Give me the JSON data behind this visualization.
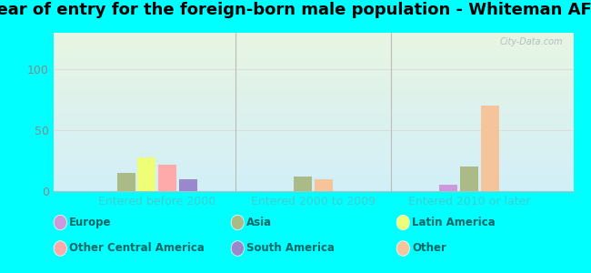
{
  "title": "Year of entry for the foreign-born male population - Whiteman AFB",
  "groups": [
    "Entered before 2000",
    "Entered 2000 to 2009",
    "Entered 2010 or later"
  ],
  "bars": [
    {
      "group": 0,
      "series": "Asia",
      "value": 15,
      "color": "#aabb88"
    },
    {
      "group": 0,
      "series": "Latin America",
      "value": 28,
      "color": "#eeff77"
    },
    {
      "group": 0,
      "series": "Other Central America",
      "value": 22,
      "color": "#ffaaaa"
    },
    {
      "group": 0,
      "series": "South America",
      "value": 10,
      "color": "#9988cc"
    },
    {
      "group": 1,
      "series": "Asia",
      "value": 12,
      "color": "#aabb88"
    },
    {
      "group": 1,
      "series": "Other",
      "value": 10,
      "color": "#f5c49a"
    },
    {
      "group": 2,
      "series": "Europe",
      "value": 5,
      "color": "#cc99dd"
    },
    {
      "group": 2,
      "series": "Asia",
      "value": 20,
      "color": "#aabb88"
    },
    {
      "group": 2,
      "series": "Other",
      "value": 70,
      "color": "#f5c49a"
    }
  ],
  "legend_items": [
    {
      "label": "Europe",
      "color": "#cc99dd"
    },
    {
      "label": "Other Central America",
      "color": "#ffaaaa"
    },
    {
      "label": "Asia",
      "color": "#aabb88"
    },
    {
      "label": "South America",
      "color": "#9988cc"
    },
    {
      "label": "Latin America",
      "color": "#eeff77"
    },
    {
      "label": "Other",
      "color": "#f5c49a"
    }
  ],
  "group_centers": [
    0.2,
    0.5,
    0.8
  ],
  "bar_width": 0.038,
  "bar_gap": 0.002,
  "ylim": [
    0,
    130
  ],
  "yticks": [
    0,
    50,
    100
  ],
  "outer_bg": "#00ffff",
  "plot_bg_top": "#e8f5e2",
  "plot_bg_bottom": "#d2eff8",
  "watermark": "City-Data.com",
  "title_fontsize": 13,
  "tick_fontsize": 9,
  "legend_fontsize": 8.5,
  "xtick_color": "#44cccc",
  "ytick_color": "#888888",
  "grid_color": "#dddddd",
  "sep_color": "#bbbbbb"
}
